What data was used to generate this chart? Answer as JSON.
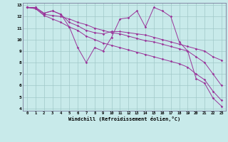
{
  "xlabel": "Windchill (Refroidissement éolien,°C)",
  "bg_color": "#c8eaea",
  "grid_color": "#a0c8c8",
  "line_color": "#993399",
  "xlim": [
    -0.5,
    23.5
  ],
  "ylim": [
    3.8,
    13.2
  ],
  "xticks": [
    0,
    1,
    2,
    3,
    4,
    5,
    6,
    7,
    8,
    9,
    10,
    11,
    12,
    13,
    14,
    15,
    16,
    17,
    18,
    19,
    20,
    21,
    22,
    23
  ],
  "yticks": [
    4,
    5,
    6,
    7,
    8,
    9,
    10,
    11,
    12,
    13
  ],
  "line1": [
    12.8,
    12.8,
    12.3,
    12.5,
    12.2,
    11.1,
    9.3,
    8.0,
    9.3,
    9.0,
    10.2,
    11.8,
    11.9,
    12.5,
    11.1,
    12.8,
    12.5,
    12.0,
    9.8,
    9.0,
    6.6,
    6.2,
    4.9,
    4.2
  ],
  "line2": [
    12.8,
    12.8,
    12.3,
    12.5,
    12.2,
    11.5,
    11.2,
    10.8,
    10.6,
    10.5,
    10.7,
    10.7,
    10.6,
    10.5,
    10.4,
    10.2,
    10.0,
    9.8,
    9.6,
    9.4,
    9.2,
    9.0,
    8.5,
    8.2
  ],
  "line3": [
    12.8,
    12.7,
    12.2,
    12.1,
    12.0,
    11.8,
    11.5,
    11.3,
    11.0,
    10.8,
    10.6,
    10.5,
    10.3,
    10.1,
    9.9,
    9.8,
    9.6,
    9.4,
    9.2,
    9.0,
    8.5,
    8.0,
    7.0,
    6.0
  ],
  "line4": [
    12.8,
    12.7,
    12.1,
    11.8,
    11.5,
    11.1,
    10.8,
    10.3,
    10.0,
    9.7,
    9.5,
    9.3,
    9.1,
    8.9,
    8.7,
    8.5,
    8.3,
    8.1,
    7.9,
    7.6,
    7.0,
    6.5,
    5.5,
    4.7
  ],
  "spine_color": "#7a7a9a",
  "tick_fontsize": 4.0,
  "xlabel_fontsize": 5.0
}
